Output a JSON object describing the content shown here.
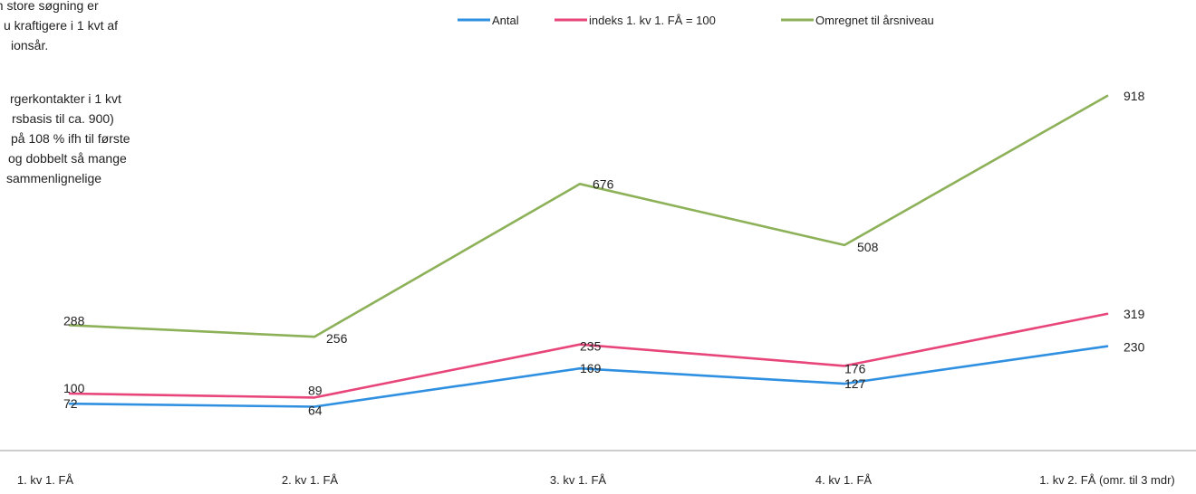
{
  "side_text": {
    "para1": [
      "en store søgning er",
      "u kraftigere i 1 kvt af",
      "ionsår."
    ],
    "para2": [
      "rgerkontakter i 1 kvt",
      "rsbasis til ca. 900)",
      "på 108 % ifh til første",
      "og dobbelt så mange",
      "sammenlignelige"
    ]
  },
  "chart_data": {
    "type": "line",
    "categories": [
      "1. kv 1. FÅ",
      "2. kv 1. FÅ",
      "3. kv 1. FÅ",
      "4. kv 1. FÅ",
      "1. kv 2. FÅ (omr. til 3 mdr)"
    ],
    "ylim": [
      0,
      1000
    ],
    "grid": false,
    "legend_position": "top",
    "series": [
      {
        "name": "Antal",
        "color": "#2f8fe0",
        "values": [
          72,
          64,
          169,
          127,
          230
        ]
      },
      {
        "name": "indeks 1. kv 1. FÅ = 100",
        "color": "#e8457a",
        "values": [
          100,
          89,
          235,
          176,
          319
        ]
      },
      {
        "name": "Omregnet til årsniveau",
        "color": "#8db158",
        "values": [
          288,
          256,
          676,
          508,
          918
        ]
      }
    ]
  }
}
